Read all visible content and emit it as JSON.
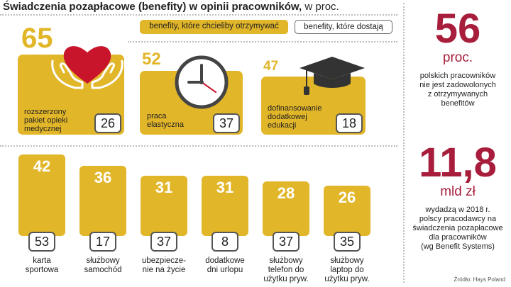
{
  "title": {
    "bold": "Świadczenia pozapłacowe (benefity) w opinii pracowników,",
    "normal": " w proc."
  },
  "legend": {
    "want": "benefity, które chcieliby otrzymywać",
    "get": "benefity, które dostają"
  },
  "chart_data": {
    "type": "bar",
    "title": "Świadczenia pozapłacowe (benefity) w opinii pracowników, w proc.",
    "categories": [
      "rozszerzony pakiet opieki medycznej",
      "praca elastyczna",
      "dofinansowanie dodatkowej edukacji",
      "karta sportowa",
      "służbowy samochód",
      "ubezpieczenie na życie",
      "dodatkowe dni urlopu",
      "służbowy telefon do użytku pryw.",
      "służbowy laptop do użytku pryw."
    ],
    "series": [
      {
        "name": "benefity, które chcieliby otrzymywać",
        "values": [
          65,
          52,
          47,
          42,
          36,
          31,
          31,
          28,
          26
        ]
      },
      {
        "name": "benefity, które dostają",
        "values": [
          26,
          37,
          18,
          53,
          17,
          37,
          8,
          37,
          35
        ]
      }
    ],
    "display_labels": {
      "top": [
        [
          "rozszerzony",
          "pakiet opieki",
          "medycznej"
        ],
        [
          "praca",
          "elastyczna"
        ],
        [
          "dofinansowanie",
          "dodatkowej",
          "edukacji"
        ]
      ],
      "bars": [
        [
          "karta",
          "sportowa"
        ],
        [
          "służbowy",
          "samochód"
        ],
        [
          "ubezpiecze-",
          "nie na życie"
        ],
        [
          "dodatkowe",
          "dni urlopu"
        ],
        [
          "służbowy",
          "telefon do",
          "użytku pryw."
        ],
        [
          "służbowy",
          "laptop do",
          "użytku pryw."
        ]
      ]
    },
    "legend": "top"
  },
  "colors": {
    "yellow": "#e2b629",
    "maroon": "#a71d3b",
    "dark": "#222222"
  },
  "stats": {
    "stat1_value": "56",
    "stat1_unit": "proc.",
    "stat1_text": [
      "polskich pracowników",
      "nie jest zadowolonych",
      "z otrzymywanych",
      "benefitów"
    ],
    "stat2_value": "11,8",
    "stat2_unit": "mld zł",
    "stat2_text": [
      "wydadzą w 2018 r.",
      "polscy pracodawcy na",
      "świadczenia pozapłacowe",
      "dla pracowników",
      "(wg Benefit Systems)"
    ]
  },
  "source": "Źródło: Hays Poland",
  "icons": [
    "heart-hands-icon",
    "clock-icon",
    "graduation-cap-icon"
  ]
}
